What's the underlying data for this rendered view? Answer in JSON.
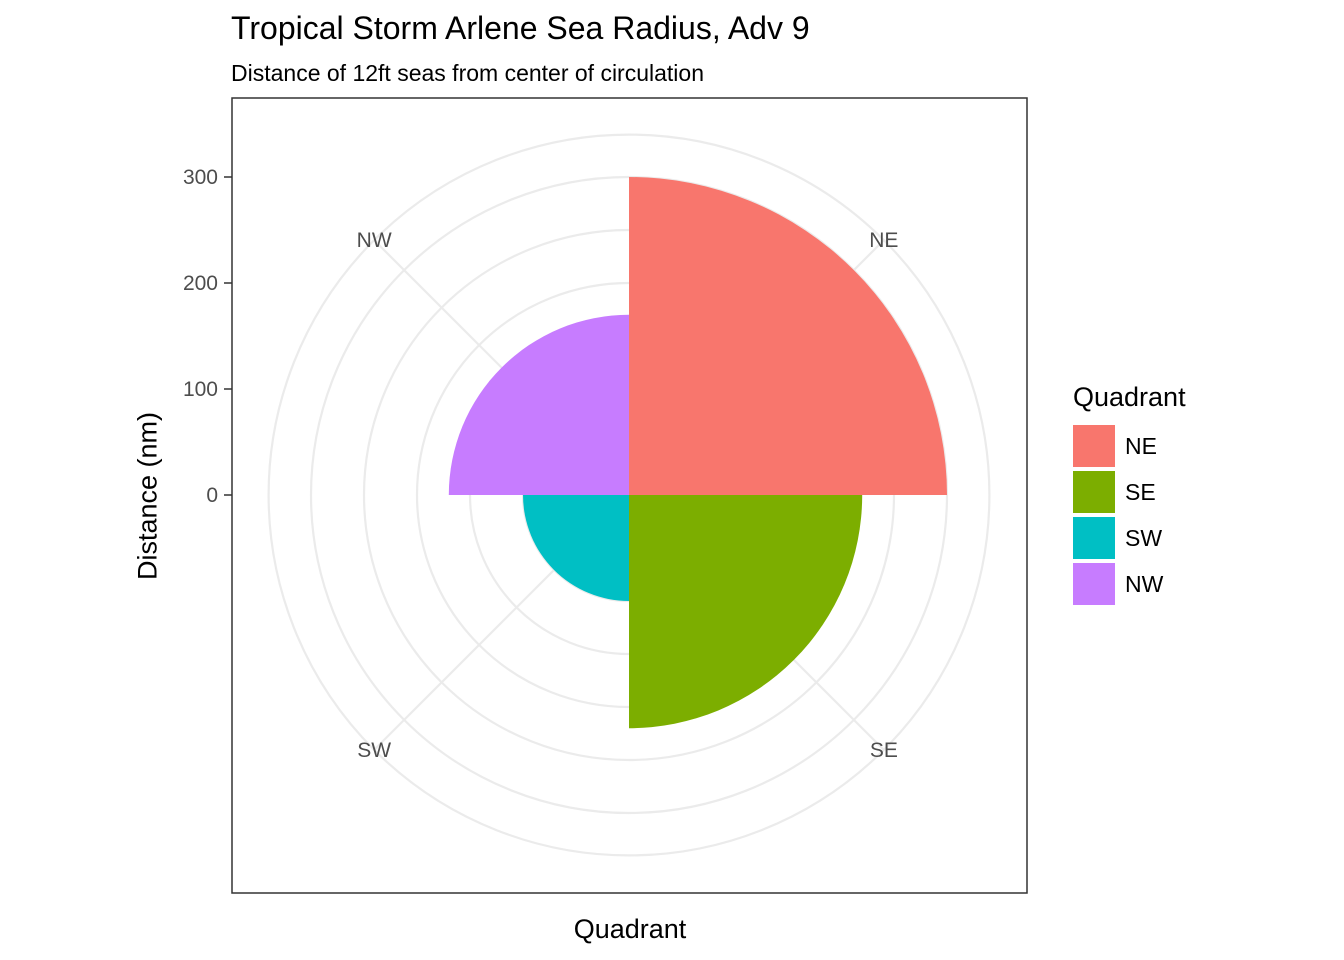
{
  "chart_data": {
    "type": "polar_bar",
    "title": "Tropical Storm Arlene Sea Radius, Adv 9",
    "subtitle": "Distance of 12ft seas from center of circulation",
    "xlabel": "Quadrant",
    "ylabel": "Distance (nm)",
    "categories": [
      "NE",
      "SE",
      "SW",
      "NW"
    ],
    "values": [
      300,
      220,
      100,
      170
    ],
    "ylim": [
      0,
      340
    ],
    "inner_hole": 0,
    "r_ticks": [
      0,
      100,
      200,
      300
    ],
    "theta_labels": [
      "NE",
      "SE",
      "SW",
      "NW"
    ],
    "colors": [
      "#F8766D",
      "#7CAE00",
      "#00BFC4",
      "#C77CFF"
    ],
    "grid": true,
    "legend": {
      "title": "Quadrant",
      "position": "right",
      "items": [
        {
          "label": "NE",
          "color": "#F8766D"
        },
        {
          "label": "SE",
          "color": "#7CAE00"
        },
        {
          "label": "SW",
          "color": "#00BFC4"
        },
        {
          "label": "NW",
          "color": "#C77CFF"
        }
      ]
    }
  }
}
